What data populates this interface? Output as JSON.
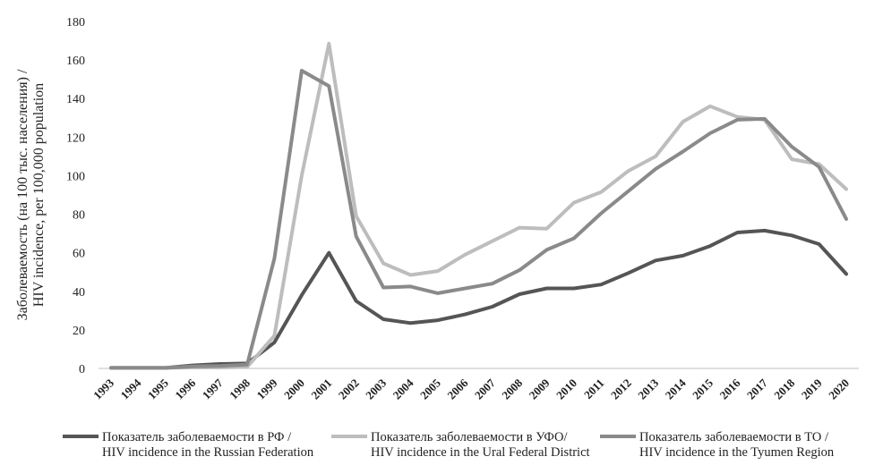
{
  "chart_data": {
    "type": "line",
    "ylabel": "Заболеваемость (на 100 тыс. населения) / HIV incidence, per 100,000 population",
    "ylim": [
      0,
      180
    ],
    "yticks": [
      0,
      20,
      40,
      60,
      80,
      100,
      120,
      140,
      160,
      180
    ],
    "grid": false,
    "legend_position": "bottom",
    "categories": [
      "1993",
      "1994",
      "1995",
      "1996",
      "1997",
      "1998",
      "1999",
      "2000",
      "2001",
      "2002",
      "2003",
      "2004",
      "2005",
      "2006",
      "2007",
      "2008",
      "2009",
      "2010",
      "2011",
      "2012",
      "2013",
      "2014",
      "2015",
      "2016",
      "2017",
      "2018",
      "2019",
      "2020"
    ],
    "series": [
      {
        "name": "Показатель заболеваемости в РФ / HIV incidence in the Russian Federation",
        "color": "#555555",
        "values": [
          0.3,
          0.3,
          0.3,
          1.6,
          2.3,
          2.6,
          13.5,
          38,
          60,
          35,
          25.5,
          23.5,
          25,
          28,
          32,
          38.5,
          41.5,
          41.5,
          43.5,
          49.5,
          56,
          58.5,
          63.5,
          70.5,
          71.5,
          69,
          64.5,
          49
        ]
      },
      {
        "name": "Показатель заболеваемости в УФО/ HIV incidence in the Ural Federal District",
        "color": "#bdbdbd",
        "values": [
          0.3,
          0.3,
          0.3,
          0.5,
          0.5,
          0.8,
          17,
          100,
          168.5,
          79,
          54.5,
          48.5,
          50.5,
          59,
          66,
          73,
          72.5,
          86,
          91.5,
          102.5,
          110,
          128,
          136,
          130.5,
          129,
          108.5,
          106,
          93
        ]
      },
      {
        "name": "Показатель заболеваемости в ТО / HIV incidence in the Tyumen Region",
        "color": "#8a8a8a",
        "values": [
          0.3,
          0.3,
          0.3,
          1,
          1.3,
          2,
          57,
          154.5,
          146.5,
          68.5,
          42,
          42.5,
          39,
          41.5,
          44,
          51,
          61.5,
          67.5,
          80.5,
          92,
          103.5,
          112.5,
          122,
          129,
          129.5,
          115,
          104.5,
          77.5
        ]
      }
    ],
    "legend": [
      {
        "line1": "Показатель заболеваемости в РФ /",
        "line2": "HIV incidence in the Russian Federation"
      },
      {
        "line1": "Показатель заболеваемости в УФО/",
        "line2": "HIV incidence in the Ural Federal District"
      },
      {
        "line1": "Показатель заболеваемости в ТО /",
        "line2": "HIV incidence in the Tyumen Region"
      }
    ],
    "ylabel_lines": [
      "Заболеваемость (на 100 тыс. населения) /",
      "HIV incidence, per 100,000 population"
    ]
  }
}
